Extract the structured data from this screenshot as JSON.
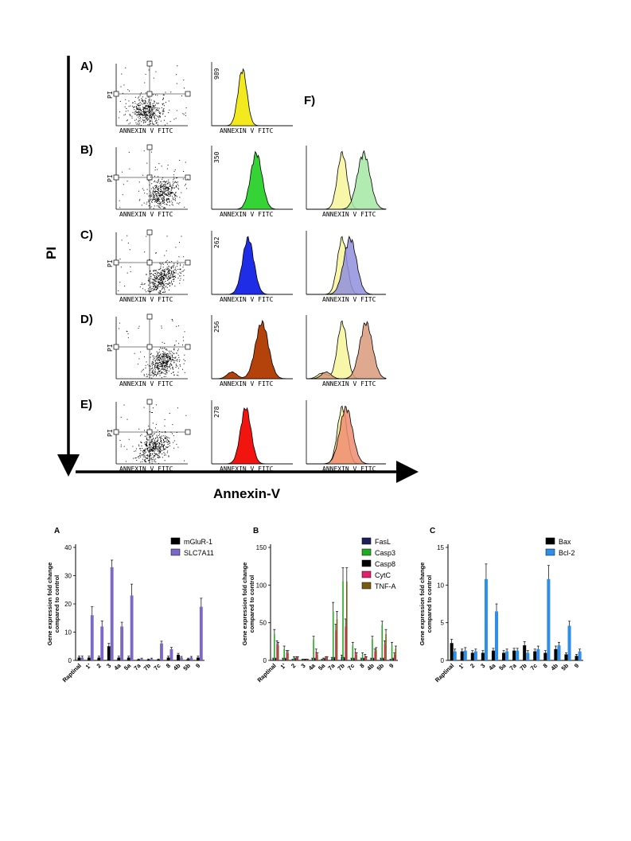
{
  "figure": {
    "y_axis_label": "PI",
    "x_axis_label": "Annexin-V"
  },
  "flow": {
    "overlay_label": "F)",
    "dot_x_label": "ANNEXIN V FITC",
    "dot_y_label": "PI",
    "hist_x_label": "ANNEXIN V FITC",
    "rows": [
      {
        "label": "A)",
        "count": "989",
        "color": "#f2ea1e",
        "peak": 0.38,
        "width": 0.055
      },
      {
        "label": "B)",
        "count": "350",
        "color": "#35d335",
        "peak": 0.55,
        "width": 0.07
      },
      {
        "label": "C)",
        "count": "262",
        "color": "#1f2ee6",
        "peak": 0.45,
        "width": 0.07
      },
      {
        "label": "D)",
        "count": "256",
        "color": "#b3420b",
        "peak": 0.62,
        "width": 0.08
      },
      {
        "label": "E)",
        "count": "278",
        "color": "#f2140f",
        "peak": 0.42,
        "width": 0.065
      }
    ],
    "overlay_colors": [
      "#a3e8a3",
      "#8f8fde",
      "#d89a7a",
      "#ee8c70"
    ],
    "overlay_reference_color": "#f7f59a"
  },
  "chart_data": [
    {
      "type": "bar",
      "panel": "A",
      "categories": [
        "Raptinal",
        "1'",
        "2",
        "3",
        "4a",
        "5a",
        "7a",
        "7b",
        "7c",
        "8",
        "4b",
        "5b",
        "9"
      ],
      "ylabel": "Gene expression fold change compared to control",
      "ylim": [
        0,
        40
      ],
      "yticks": [
        0,
        10,
        20,
        30,
        40
      ],
      "series": [
        {
          "name": "mGluR-1",
          "color": "#000000",
          "values": [
            1,
            1,
            1,
            5,
            1,
            1,
            0.3,
            0.3,
            0.3,
            1,
            2,
            0.5,
            1
          ],
          "errors": [
            0.5,
            0.5,
            0.5,
            1,
            0.5,
            0.5,
            0.2,
            0.2,
            0.2,
            0.5,
            0.5,
            0.3,
            0.5
          ]
        },
        {
          "name": "SLC7A11",
          "color": "#7b68c8",
          "values": [
            1,
            16,
            12,
            33,
            12,
            23,
            0.5,
            0.5,
            6,
            4,
            1,
            1,
            19
          ],
          "errors": [
            0.5,
            3,
            2,
            2.5,
            1.5,
            4,
            0.3,
            0.3,
            0.8,
            0.6,
            0.4,
            0.4,
            3
          ]
        }
      ]
    },
    {
      "type": "bar",
      "panel": "B",
      "categories": [
        "Raptinal",
        "1'",
        "2",
        "3",
        "4a",
        "5a",
        "7a",
        "7b",
        "7c",
        "8",
        "4b",
        "5b",
        "9"
      ],
      "ylabel": "Gene expression fold change compared to control",
      "ylim": [
        0,
        150
      ],
      "yticks": [
        0,
        50,
        100,
        150
      ],
      "series": [
        {
          "name": "FasL",
          "color": "#1e1e5a",
          "values": [
            2,
            2,
            1,
            1,
            2,
            1,
            3,
            5,
            2,
            2,
            2,
            2,
            1
          ],
          "errors": [
            1,
            1,
            0.5,
            0.5,
            1,
            0.5,
            1,
            2,
            1,
            1,
            1,
            1,
            0.5
          ]
        },
        {
          "name": "Casp3",
          "color": "#22aa22",
          "values": [
            35,
            15,
            4,
            1,
            28,
            2,
            65,
            105,
            20,
            8,
            28,
            47,
            20
          ],
          "errors": [
            6,
            4,
            1,
            0.5,
            4,
            1,
            12,
            18,
            4,
            2,
            4,
            5,
            4
          ]
        },
        {
          "name": "Casp8",
          "color": "#000000",
          "values": [
            2,
            2,
            2,
            1,
            2,
            2,
            3,
            3,
            2,
            2,
            2,
            2,
            2
          ],
          "errors": [
            1,
            1,
            1,
            0.5,
            1,
            1,
            1,
            1,
            1,
            1,
            1,
            1,
            1
          ]
        },
        {
          "name": "CytC",
          "color": "#e0206a",
          "values": [
            22,
            10,
            4,
            1,
            12,
            4,
            40,
            45,
            12,
            6,
            12,
            22,
            8
          ],
          "errors": [
            4,
            3,
            1,
            0.5,
            3,
            1,
            8,
            10,
            3,
            2,
            3,
            4,
            2
          ]
        },
        {
          "name": "TNF-A",
          "color": "#7a5a10",
          "values": [
            20,
            10,
            4,
            1,
            8,
            4,
            55,
            105,
            8,
            4,
            14,
            35,
            16
          ],
          "errors": [
            4,
            3,
            1,
            0.5,
            2,
            1,
            10,
            18,
            2,
            1,
            3,
            6,
            3
          ]
        }
      ]
    },
    {
      "type": "bar",
      "panel": "C",
      "categories": [
        "Raptinal",
        "1'",
        "2",
        "3",
        "4a",
        "5a",
        "7a",
        "7b",
        "7c",
        "8",
        "4b",
        "5b",
        "9"
      ],
      "ylabel": "Gene expression fold change compared to control",
      "ylim": [
        0,
        15
      ],
      "yticks": [
        0,
        5,
        10,
        15
      ],
      "series": [
        {
          "name": "Bax",
          "color": "#000000",
          "values": [
            2.3,
            1.2,
            1.0,
            1.0,
            1.3,
            1.0,
            1.3,
            2.0,
            1.2,
            1.0,
            1.5,
            0.8,
            0.6
          ],
          "errors": [
            0.5,
            0.3,
            0.3,
            0.3,
            0.3,
            0.3,
            0.3,
            0.5,
            0.3,
            0.3,
            0.4,
            0.2,
            0.2
          ]
        },
        {
          "name": "Bcl-2",
          "color": "#2f8fe8",
          "values": [
            1.2,
            1.3,
            1.2,
            10.8,
            6.5,
            1.2,
            1.3,
            1.0,
            1.5,
            10.8,
            2.0,
            4.6,
            1.2
          ],
          "errors": [
            0.3,
            0.4,
            0.3,
            2.0,
            1.0,
            0.3,
            0.3,
            0.3,
            0.4,
            1.8,
            0.4,
            0.6,
            0.3
          ]
        }
      ]
    }
  ]
}
